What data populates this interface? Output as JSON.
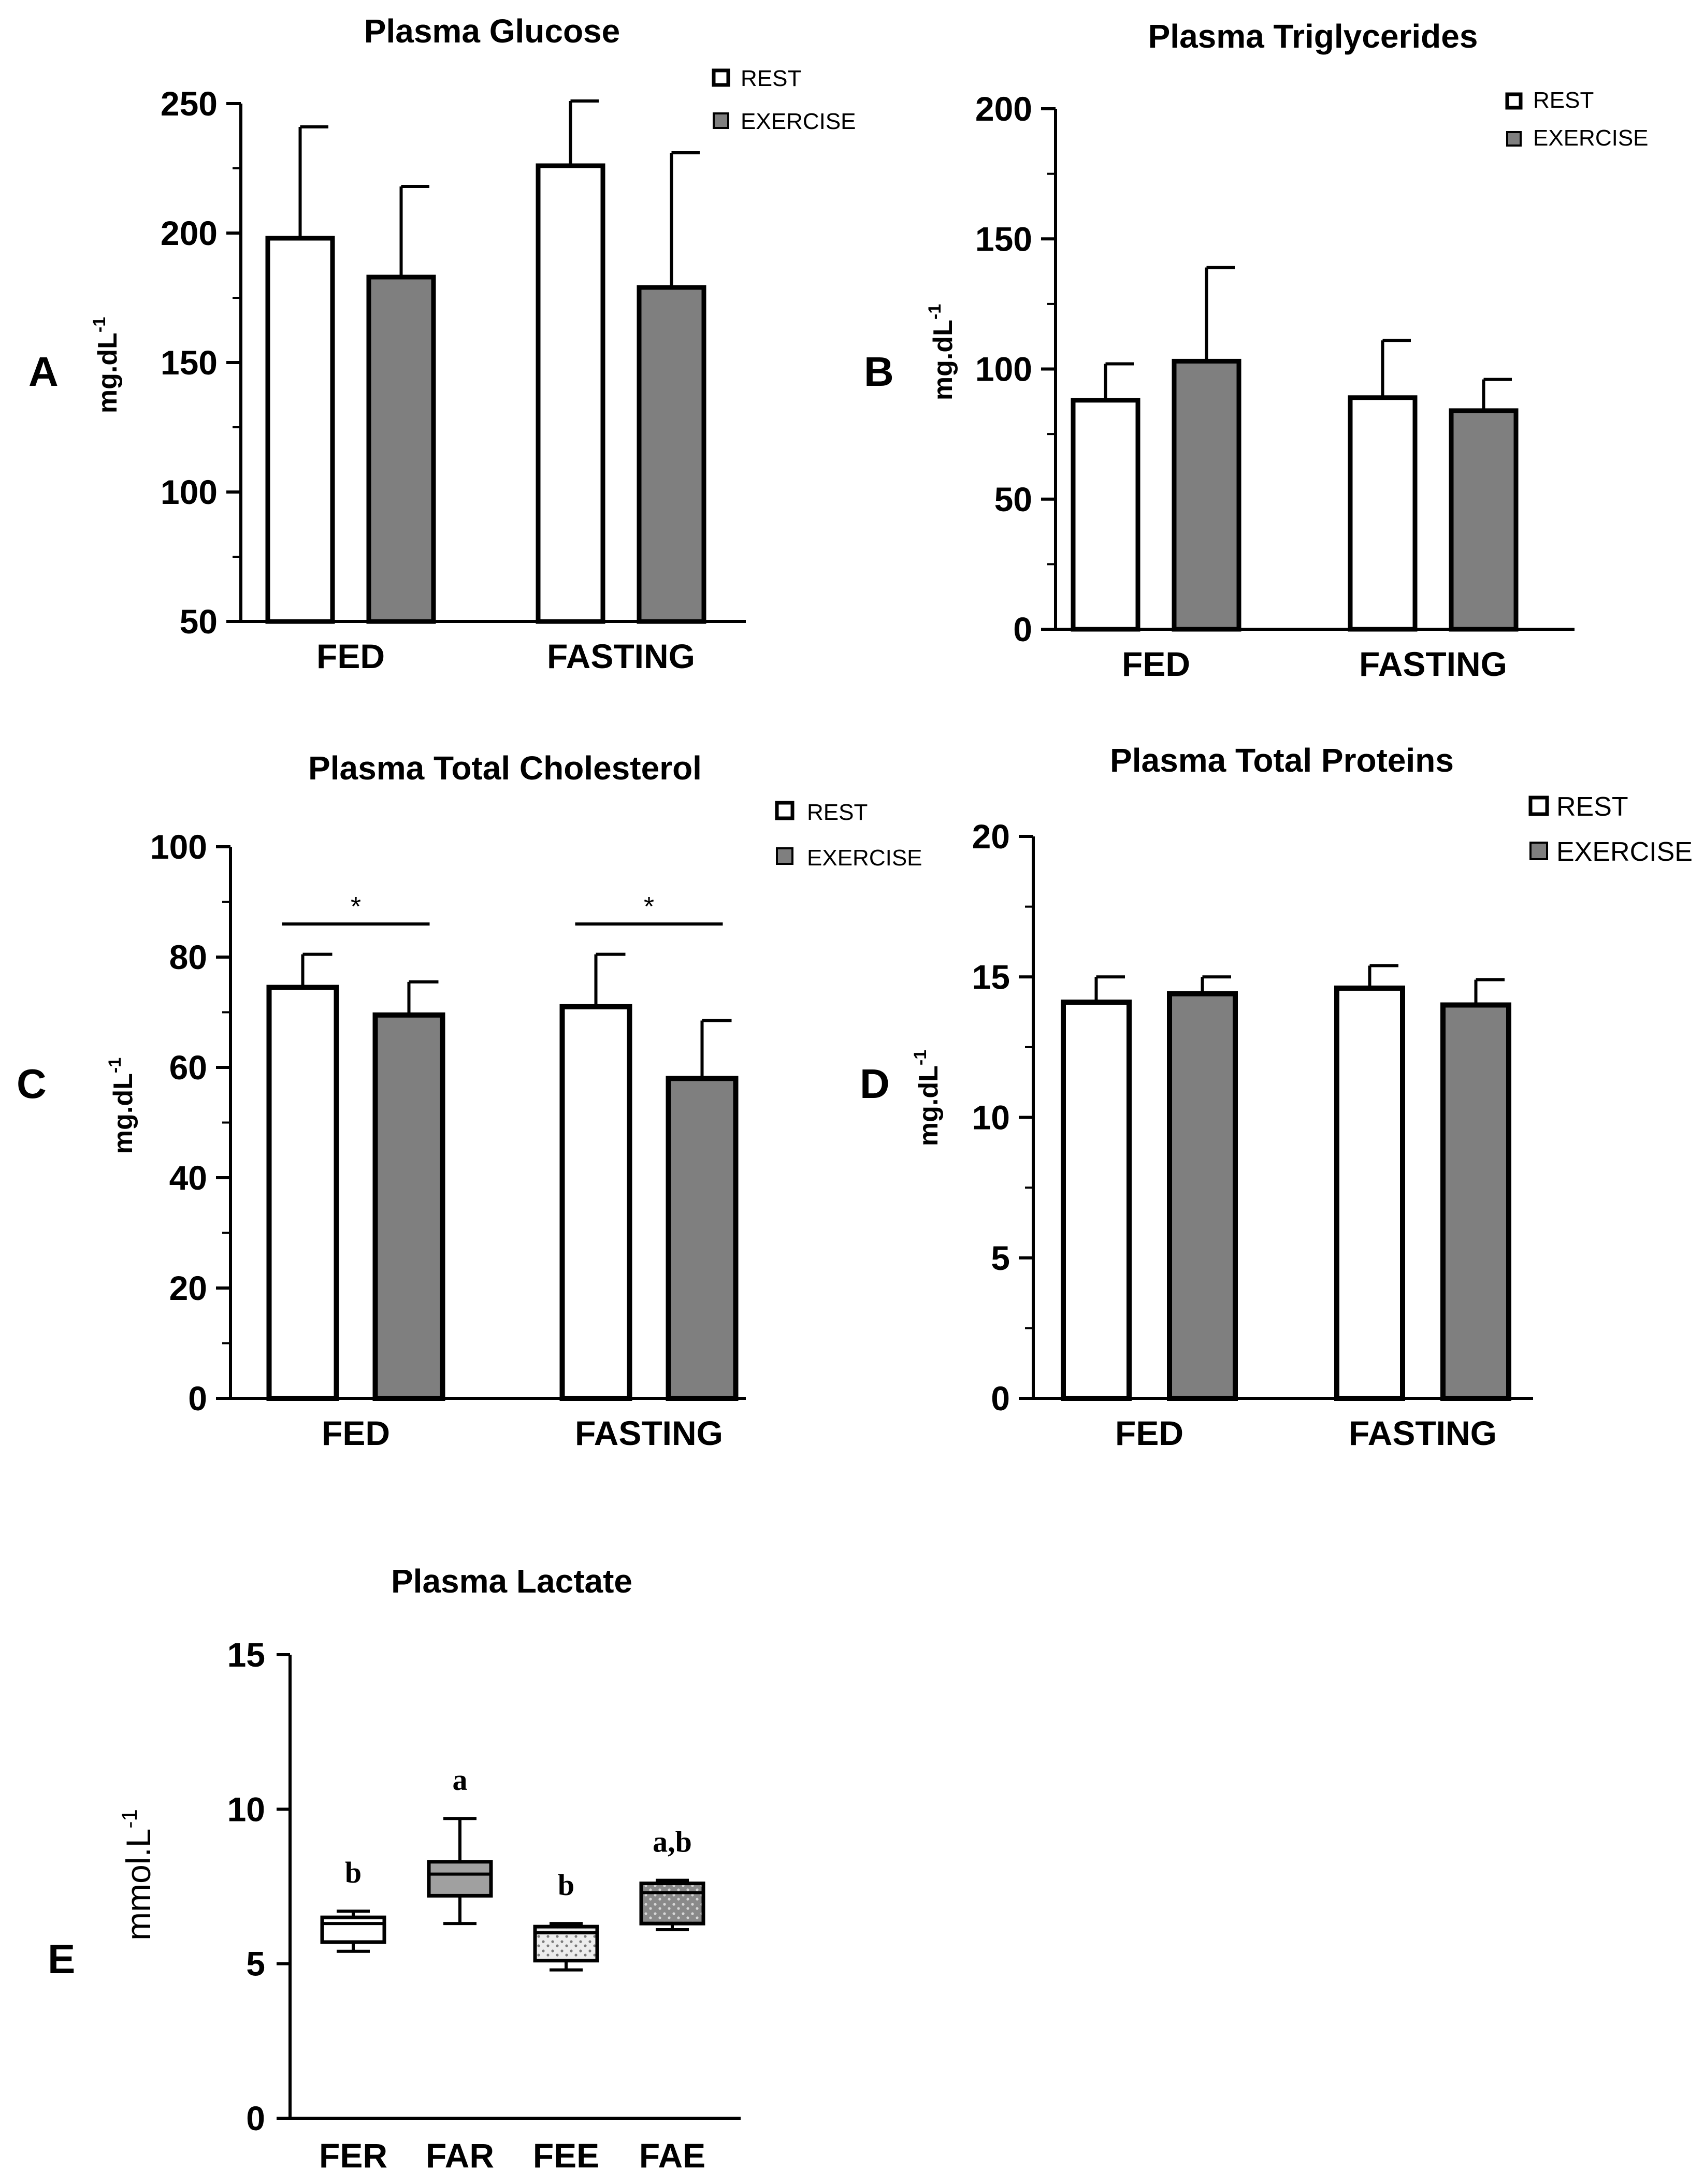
{
  "chart_data": [
    {
      "type": "bar",
      "panel": "A",
      "title": "Plasma Glucose",
      "ylabel": "mg.dL",
      "ylabel_sup": "-1",
      "categories": [
        "FED",
        "FASTING"
      ],
      "ylim": [
        50,
        250
      ],
      "yticks": [
        50,
        100,
        150,
        200,
        250
      ],
      "series": [
        {
          "name": "REST",
          "values": [
            198,
            226
          ],
          "errors": [
            43,
            25
          ]
        },
        {
          "name": "EXERCISE",
          "values": [
            183,
            179
          ],
          "errors": [
            35,
            52
          ]
        }
      ],
      "significance": []
    },
    {
      "type": "bar",
      "panel": "B",
      "title": "Plasma Triglycerides",
      "ylabel": "mg.dL",
      "ylabel_sup": "-1",
      "categories": [
        "FED",
        "FASTING"
      ],
      "ylim": [
        0,
        200
      ],
      "yticks": [
        0,
        50,
        100,
        150,
        200
      ],
      "series": [
        {
          "name": "REST",
          "values": [
            88,
            89
          ],
          "errors": [
            14,
            22
          ]
        },
        {
          "name": "EXERCISE",
          "values": [
            103,
            84
          ],
          "errors": [
            36,
            12
          ]
        }
      ],
      "significance": []
    },
    {
      "type": "bar",
      "panel": "C",
      "title": "Plasma Total Cholesterol",
      "ylabel": "mg.dL",
      "ylabel_sup": "-1",
      "categories": [
        "FED",
        "FASTING"
      ],
      "ylim": [
        0,
        100
      ],
      "yticks": [
        0,
        20,
        40,
        60,
        80,
        100
      ],
      "series": [
        {
          "name": "REST",
          "values": [
            74.5,
            71
          ],
          "errors": [
            6,
            9.5
          ]
        },
        {
          "name": "EXERCISE",
          "values": [
            69.5,
            58
          ],
          "errors": [
            6,
            10.5
          ]
        }
      ],
      "significance": [
        {
          "category_index": 0,
          "label": "*",
          "y": 86
        },
        {
          "category_index": 1,
          "label": "*",
          "y": 86
        }
      ]
    },
    {
      "type": "bar",
      "panel": "D",
      "title": "Plasma Total Proteins",
      "ylabel": "mg.dL",
      "ylabel_sup": "-1",
      "categories": [
        "FED",
        "FASTING"
      ],
      "ylim": [
        0,
        20
      ],
      "yticks": [
        0,
        5,
        10,
        15,
        20
      ],
      "series": [
        {
          "name": "REST",
          "values": [
            14.1,
            14.6
          ],
          "errors": [
            0.9,
            0.8
          ]
        },
        {
          "name": "EXERCISE",
          "values": [
            14.4,
            14.0
          ],
          "errors": [
            0.6,
            0.9
          ]
        }
      ],
      "significance": []
    },
    {
      "type": "box",
      "panel": "E",
      "title": "Plasma Lactate",
      "ylabel": "mmol.L",
      "ylabel_sup": "-1",
      "categories": [
        "FER",
        "FAR",
        "FEE",
        "FAE"
      ],
      "ylim": [
        0,
        15
      ],
      "yticks": [
        0,
        5,
        10,
        15
      ],
      "boxes": [
        {
          "name": "FER",
          "min": 5.4,
          "q1": 5.7,
          "median": 6.3,
          "q3": 6.5,
          "max": 6.7,
          "letter": "b"
        },
        {
          "name": "FAR",
          "min": 6.3,
          "q1": 7.2,
          "median": 7.9,
          "q3": 8.3,
          "max": 9.7,
          "letter": "a"
        },
        {
          "name": "FEE",
          "min": 4.8,
          "q1": 5.1,
          "median": 6.0,
          "q3": 6.2,
          "max": 6.3,
          "letter": "b"
        },
        {
          "name": "FAE",
          "min": 6.1,
          "q1": 6.3,
          "median": 7.3,
          "q3": 7.6,
          "max": 7.7,
          "letter": "a,b"
        }
      ]
    }
  ],
  "colors": {
    "rest_fill": "#ffffff",
    "exercise_fill": "#7f7f7f",
    "axis": "#000000",
    "far_fill": "#a0a0a0",
    "fee_fill": "#ececec",
    "fae_fill": "#8a8a8a"
  }
}
